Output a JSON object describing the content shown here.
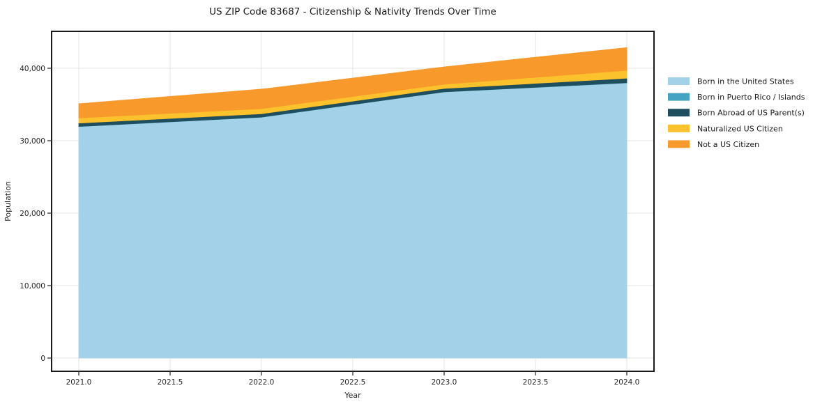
{
  "title": "US ZIP Code 83687 - Citizenship & Nativity Trends Over Time",
  "chart_data": {
    "type": "area",
    "stacked": true,
    "title": "US ZIP Code 83687 - Citizenship & Nativity Trends Over Time",
    "xlabel": "Year",
    "ylabel": "Population",
    "x": [
      2021,
      2022,
      2023,
      2024
    ],
    "series": [
      {
        "name": "Born in the United States",
        "color": "#a3d1e8",
        "values": [
          31950,
          33240,
          36730,
          37980
        ]
      },
      {
        "name": "Born in Puerto Rico / Islands",
        "color": "#44a3c3",
        "values": [
          20,
          20,
          20,
          20
        ]
      },
      {
        "name": "Born Abroad of US Parent(s)",
        "color": "#1f4e5f",
        "values": [
          460,
          460,
          460,
          625
        ]
      },
      {
        "name": "Naturalized US Citizen",
        "color": "#fbc22d",
        "values": [
          710,
          700,
          580,
          1085
        ]
      },
      {
        "name": "Not a US Citizen",
        "color": "#f7992b",
        "values": [
          1960,
          2700,
          2400,
          3145
        ]
      }
    ],
    "totals": [
      35100,
      37120,
      40190,
      42855
    ],
    "x_ticks": [
      2021.0,
      2021.5,
      2022.0,
      2022.5,
      2023.0,
      2023.5,
      2024.0
    ],
    "x_tick_labels": [
      "2021.0",
      "2021.5",
      "2022.0",
      "2022.5",
      "2023.0",
      "2023.5",
      "2024.0"
    ],
    "y_ticks": [
      0,
      10000,
      20000,
      30000,
      40000
    ],
    "y_tick_labels": [
      "0",
      "10,000",
      "20,000",
      "30,000",
      "40,000"
    ],
    "xlim": [
      2020.85,
      2024.15
    ],
    "ylim": [
      -1830,
      45100
    ],
    "grid": true,
    "legend_position": "right",
    "colors": {
      "background": "#ffffff",
      "spine": "#1a1a1a",
      "gridline": "#e4e4e4",
      "tick": "#333333"
    }
  }
}
